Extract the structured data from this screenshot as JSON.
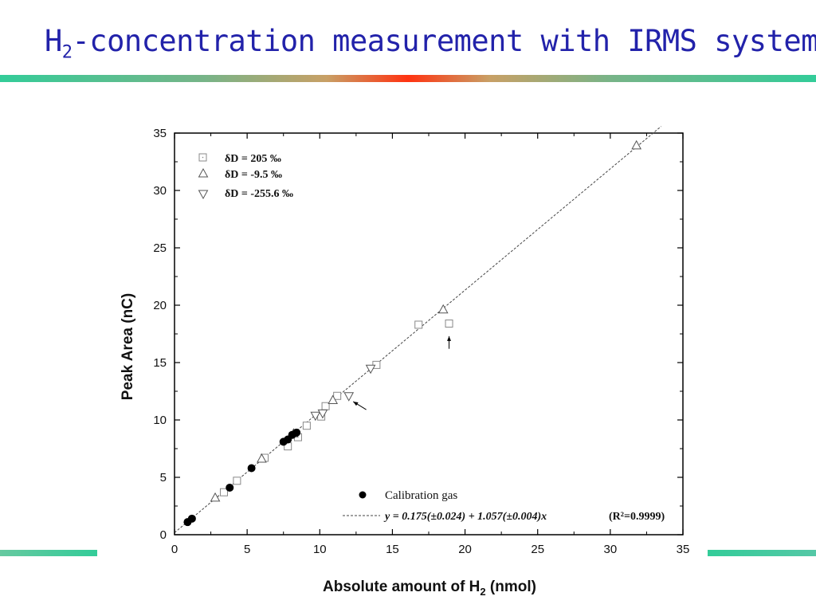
{
  "slide": {
    "title_main": "H",
    "title_sub": "2",
    "title_rest": "-concentration measurement with IRMS system"
  },
  "colors": {
    "title": "#2222aa",
    "accent_center": "#ff3311",
    "accent_edge": "#33cc99"
  },
  "chart_data": {
    "type": "scatter",
    "xlabel_main": "Absolute amount of H",
    "xlabel_sub": "2",
    "xlabel_unit": " (nmol)",
    "ylabel": "Peak Area (nC)",
    "xlim": [
      0,
      35
    ],
    "ylim": [
      0,
      35
    ],
    "x_ticks": [
      "0",
      "5",
      "10",
      "15",
      "20",
      "25",
      "30",
      "35"
    ],
    "y_ticks": [
      "0",
      "5",
      "10",
      "15",
      "20",
      "25",
      "30",
      "35"
    ],
    "legend_top": [
      {
        "marker": "square",
        "label": "δD = 205 ‰"
      },
      {
        "marker": "triangle-up",
        "label": "δD = -9.5 ‰"
      },
      {
        "marker": "triangle-down",
        "label": "δD = -255.6 ‰"
      }
    ],
    "legend_bottom": [
      {
        "marker": "filled-circle",
        "label": "Calibration gas"
      },
      {
        "marker": "dashed-line",
        "label": "y = 0.175(±0.024) + 1.057(±0.004)x",
        "r2": "(R²=0.9999)"
      }
    ],
    "fit": {
      "intercept": 0.175,
      "slope": 1.057,
      "x_range": [
        0,
        33.5
      ]
    },
    "series": [
      {
        "name": "δD = 205 ‰",
        "marker": "square",
        "x": [
          3.4,
          4.3,
          6.2,
          7.8,
          8.5,
          9.1,
          10.1,
          10.4,
          11.2,
          13.9,
          16.8,
          18.9
        ],
        "y": [
          3.7,
          4.7,
          6.7,
          7.7,
          8.5,
          9.5,
          10.3,
          11.2,
          12.1,
          14.8,
          18.3,
          18.4
        ]
      },
      {
        "name": "δD = -9.5 ‰",
        "marker": "triangle-up",
        "x": [
          2.8,
          6.0,
          8.2,
          10.9,
          18.5,
          31.8
        ],
        "y": [
          3.2,
          6.6,
          8.8,
          11.7,
          19.6,
          33.9
        ]
      },
      {
        "name": "δD = -255.6 ‰",
        "marker": "triangle-down",
        "x": [
          9.7,
          10.2,
          12.0,
          13.5
        ],
        "y": [
          10.4,
          10.6,
          12.1,
          14.5
        ]
      },
      {
        "name": "Calibration gas",
        "marker": "filled-circle",
        "x": [
          0.9,
          1.2,
          3.8,
          5.3,
          7.5,
          7.8,
          8.1,
          8.4
        ],
        "y": [
          1.1,
          1.4,
          4.1,
          5.8,
          8.1,
          8.3,
          8.7,
          8.9
        ]
      }
    ],
    "annotations": [
      {
        "type": "arrow",
        "target": [
          18.9,
          17.3
        ],
        "from": [
          18.9,
          16.2
        ]
      },
      {
        "type": "arrow",
        "target": [
          12.3,
          11.6
        ],
        "from": [
          13.2,
          10.9
        ]
      }
    ]
  }
}
